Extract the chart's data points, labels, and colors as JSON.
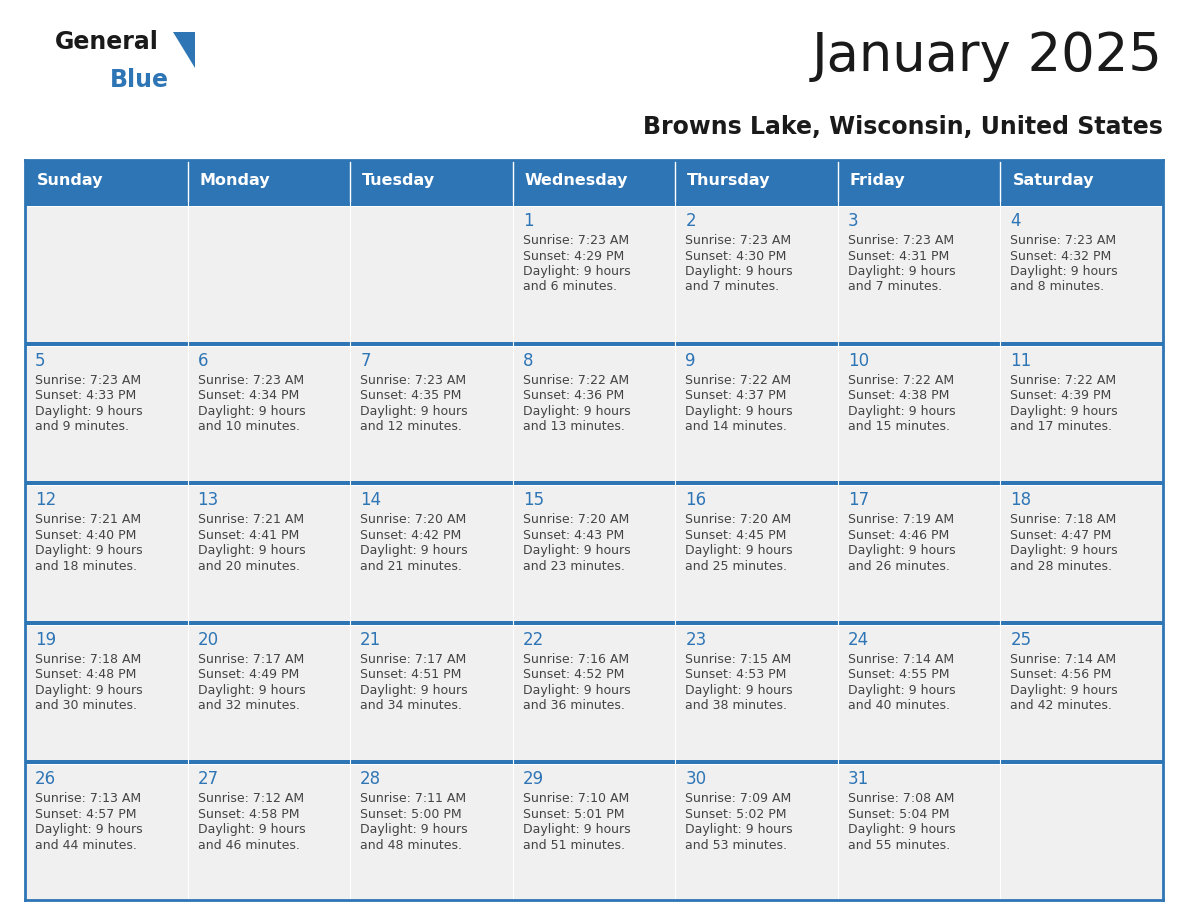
{
  "title": "January 2025",
  "subtitle": "Browns Lake, Wisconsin, United States",
  "header_color": "#2E75B6",
  "header_text_color": "#FFFFFF",
  "cell_bg_row0": "#F0F0F0",
  "cell_bg_row1": "#FFFFFF",
  "cell_text_color": "#444444",
  "day_num_color": "#2E75B6",
  "border_color": "#2E75B6",
  "row_separator_color": "#2E75B6",
  "days_of_week": [
    "Sunday",
    "Monday",
    "Tuesday",
    "Wednesday",
    "Thursday",
    "Friday",
    "Saturday"
  ],
  "calendar_data": [
    [
      {
        "day": null,
        "sunrise": null,
        "sunset": null,
        "daylight_hours": null,
        "daylight_mins": null
      },
      {
        "day": null,
        "sunrise": null,
        "sunset": null,
        "daylight_hours": null,
        "daylight_mins": null
      },
      {
        "day": null,
        "sunrise": null,
        "sunset": null,
        "daylight_hours": null,
        "daylight_mins": null
      },
      {
        "day": 1,
        "sunrise": "7:23 AM",
        "sunset": "4:29 PM",
        "daylight_hours": 9,
        "daylight_mins": 6
      },
      {
        "day": 2,
        "sunrise": "7:23 AM",
        "sunset": "4:30 PM",
        "daylight_hours": 9,
        "daylight_mins": 7
      },
      {
        "day": 3,
        "sunrise": "7:23 AM",
        "sunset": "4:31 PM",
        "daylight_hours": 9,
        "daylight_mins": 7
      },
      {
        "day": 4,
        "sunrise": "7:23 AM",
        "sunset": "4:32 PM",
        "daylight_hours": 9,
        "daylight_mins": 8
      }
    ],
    [
      {
        "day": 5,
        "sunrise": "7:23 AM",
        "sunset": "4:33 PM",
        "daylight_hours": 9,
        "daylight_mins": 9
      },
      {
        "day": 6,
        "sunrise": "7:23 AM",
        "sunset": "4:34 PM",
        "daylight_hours": 9,
        "daylight_mins": 10
      },
      {
        "day": 7,
        "sunrise": "7:23 AM",
        "sunset": "4:35 PM",
        "daylight_hours": 9,
        "daylight_mins": 12
      },
      {
        "day": 8,
        "sunrise": "7:22 AM",
        "sunset": "4:36 PM",
        "daylight_hours": 9,
        "daylight_mins": 13
      },
      {
        "day": 9,
        "sunrise": "7:22 AM",
        "sunset": "4:37 PM",
        "daylight_hours": 9,
        "daylight_mins": 14
      },
      {
        "day": 10,
        "sunrise": "7:22 AM",
        "sunset": "4:38 PM",
        "daylight_hours": 9,
        "daylight_mins": 15
      },
      {
        "day": 11,
        "sunrise": "7:22 AM",
        "sunset": "4:39 PM",
        "daylight_hours": 9,
        "daylight_mins": 17
      }
    ],
    [
      {
        "day": 12,
        "sunrise": "7:21 AM",
        "sunset": "4:40 PM",
        "daylight_hours": 9,
        "daylight_mins": 18
      },
      {
        "day": 13,
        "sunrise": "7:21 AM",
        "sunset": "4:41 PM",
        "daylight_hours": 9,
        "daylight_mins": 20
      },
      {
        "day": 14,
        "sunrise": "7:20 AM",
        "sunset": "4:42 PM",
        "daylight_hours": 9,
        "daylight_mins": 21
      },
      {
        "day": 15,
        "sunrise": "7:20 AM",
        "sunset": "4:43 PM",
        "daylight_hours": 9,
        "daylight_mins": 23
      },
      {
        "day": 16,
        "sunrise": "7:20 AM",
        "sunset": "4:45 PM",
        "daylight_hours": 9,
        "daylight_mins": 25
      },
      {
        "day": 17,
        "sunrise": "7:19 AM",
        "sunset": "4:46 PM",
        "daylight_hours": 9,
        "daylight_mins": 26
      },
      {
        "day": 18,
        "sunrise": "7:18 AM",
        "sunset": "4:47 PM",
        "daylight_hours": 9,
        "daylight_mins": 28
      }
    ],
    [
      {
        "day": 19,
        "sunrise": "7:18 AM",
        "sunset": "4:48 PM",
        "daylight_hours": 9,
        "daylight_mins": 30
      },
      {
        "day": 20,
        "sunrise": "7:17 AM",
        "sunset": "4:49 PM",
        "daylight_hours": 9,
        "daylight_mins": 32
      },
      {
        "day": 21,
        "sunrise": "7:17 AM",
        "sunset": "4:51 PM",
        "daylight_hours": 9,
        "daylight_mins": 34
      },
      {
        "day": 22,
        "sunrise": "7:16 AM",
        "sunset": "4:52 PM",
        "daylight_hours": 9,
        "daylight_mins": 36
      },
      {
        "day": 23,
        "sunrise": "7:15 AM",
        "sunset": "4:53 PM",
        "daylight_hours": 9,
        "daylight_mins": 38
      },
      {
        "day": 24,
        "sunrise": "7:14 AM",
        "sunset": "4:55 PM",
        "daylight_hours": 9,
        "daylight_mins": 40
      },
      {
        "day": 25,
        "sunrise": "7:14 AM",
        "sunset": "4:56 PM",
        "daylight_hours": 9,
        "daylight_mins": 42
      }
    ],
    [
      {
        "day": 26,
        "sunrise": "7:13 AM",
        "sunset": "4:57 PM",
        "daylight_hours": 9,
        "daylight_mins": 44
      },
      {
        "day": 27,
        "sunrise": "7:12 AM",
        "sunset": "4:58 PM",
        "daylight_hours": 9,
        "daylight_mins": 46
      },
      {
        "day": 28,
        "sunrise": "7:11 AM",
        "sunset": "5:00 PM",
        "daylight_hours": 9,
        "daylight_mins": 48
      },
      {
        "day": 29,
        "sunrise": "7:10 AM",
        "sunset": "5:01 PM",
        "daylight_hours": 9,
        "daylight_mins": 51
      },
      {
        "day": 30,
        "sunrise": "7:09 AM",
        "sunset": "5:02 PM",
        "daylight_hours": 9,
        "daylight_mins": 53
      },
      {
        "day": 31,
        "sunrise": "7:08 AM",
        "sunset": "5:04 PM",
        "daylight_hours": 9,
        "daylight_mins": 55
      },
      {
        "day": null,
        "sunrise": null,
        "sunset": null,
        "daylight_hours": null,
        "daylight_mins": null
      }
    ]
  ]
}
